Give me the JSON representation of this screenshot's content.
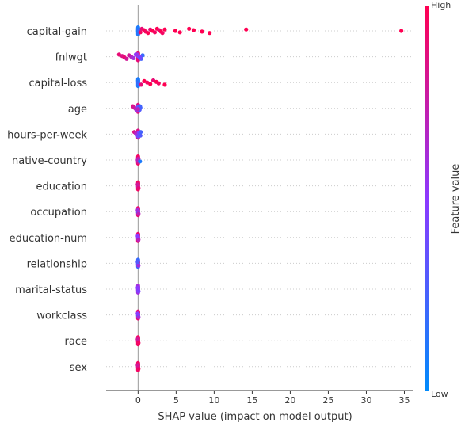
{
  "chart_data": {
    "type": "scatter",
    "variant": "shap-beeswarm",
    "xlabel": "SHAP value (impact on model output)",
    "ylabel": "",
    "xlim": [
      -4.2,
      36.2
    ],
    "xticks": [
      0,
      5,
      10,
      15,
      20,
      25,
      30,
      35
    ],
    "zero_line": true,
    "grid": false,
    "colorbar": {
      "label": "Feature value",
      "high_label": "High",
      "low_label": "Low",
      "high_color": "#ff0052",
      "mid_color": "#8c39ff",
      "low_color": "#008bfb"
    },
    "features": [
      {
        "name": "capital-gain",
        "points": [
          [
            0,
            0.1
          ],
          [
            0,
            0.2
          ],
          [
            0,
            0.05
          ],
          [
            0.05,
            0.15
          ],
          [
            0.1,
            0.1
          ],
          [
            0.15,
            0.2
          ],
          [
            0.3,
            0.95
          ],
          [
            0.5,
            0.9
          ],
          [
            0.8,
            1
          ],
          [
            1.0,
            0.95
          ],
          [
            1.3,
            1
          ],
          [
            1.6,
            0.9
          ],
          [
            1.9,
            1
          ],
          [
            2.2,
            0.95
          ],
          [
            2.5,
            1
          ],
          [
            2.8,
            0.9
          ],
          [
            3.0,
            1
          ],
          [
            3.2,
            0.95
          ],
          [
            3.5,
            1
          ],
          [
            4.9,
            1
          ],
          [
            5.5,
            1
          ],
          [
            6.7,
            1
          ],
          [
            7.3,
            1
          ],
          [
            8.4,
            1
          ],
          [
            9.4,
            1
          ],
          [
            14.2,
            1
          ],
          [
            34.6,
            1
          ]
        ]
      },
      {
        "name": "fnlwgt",
        "points": [
          [
            -2.5,
            0.9
          ],
          [
            -2.1,
            0.85
          ],
          [
            -1.8,
            0.9
          ],
          [
            -1.5,
            0.8
          ],
          [
            -1.2,
            0.8
          ],
          [
            -0.9,
            0.7
          ],
          [
            -0.6,
            0.6
          ],
          [
            -0.3,
            0.5
          ],
          [
            0,
            0.45
          ],
          [
            0.2,
            0.35
          ],
          [
            0.4,
            0.25
          ],
          [
            0.6,
            0.2
          ],
          [
            0.2,
            0.5
          ],
          [
            0.3,
            0.4
          ],
          [
            -0.1,
            0.55
          ]
        ]
      },
      {
        "name": "capital-loss",
        "points": [
          [
            0,
            0.1
          ],
          [
            0,
            0.15
          ],
          [
            0.05,
            0.2
          ],
          [
            0.4,
            0.9
          ],
          [
            0.8,
            1
          ],
          [
            1.2,
            0.95
          ],
          [
            1.6,
            1
          ],
          [
            2.0,
            0.9
          ],
          [
            2.4,
            1
          ],
          [
            2.7,
            0.95
          ],
          [
            3.5,
            1
          ]
        ]
      },
      {
        "name": "age",
        "points": [
          [
            -0.7,
            0.85
          ],
          [
            -0.5,
            0.8
          ],
          [
            -0.3,
            0.7
          ],
          [
            -0.1,
            0.6
          ],
          [
            0,
            0.4
          ],
          [
            0.1,
            0.5
          ],
          [
            0.2,
            0.3
          ],
          [
            0.25,
            0.2
          ],
          [
            0.3,
            0.25
          ],
          [
            0,
            0.7
          ]
        ]
      },
      {
        "name": "hours-per-week",
        "points": [
          [
            -0.5,
            0.85
          ],
          [
            -0.3,
            0.7
          ],
          [
            -0.1,
            0.6
          ],
          [
            0,
            0.4
          ],
          [
            0.1,
            0.5
          ],
          [
            0.2,
            0.35
          ],
          [
            0.3,
            0.3
          ],
          [
            0.35,
            0.25
          ]
        ]
      },
      {
        "name": "native-country",
        "points": [
          [
            0,
            0.95
          ],
          [
            0,
            0.9
          ],
          [
            0,
            0.85
          ],
          [
            0,
            0.8
          ],
          [
            0.05,
            0.75
          ],
          [
            -0.05,
            0.7
          ],
          [
            0.25,
            0.1
          ]
        ]
      },
      {
        "name": "education",
        "points": [
          [
            0,
            0.95
          ],
          [
            0,
            0.85
          ],
          [
            0,
            0.7
          ],
          [
            0.05,
            0.9
          ],
          [
            -0.05,
            0.8
          ]
        ]
      },
      {
        "name": "occupation",
        "points": [
          [
            0,
            0.9
          ],
          [
            0,
            0.5
          ],
          [
            0,
            0.3
          ],
          [
            0.05,
            0.7
          ],
          [
            -0.05,
            0.6
          ]
        ]
      },
      {
        "name": "education-num",
        "points": [
          [
            0,
            0.9
          ],
          [
            0,
            0.6
          ],
          [
            0,
            0.4
          ],
          [
            0.05,
            0.7
          ],
          [
            -0.05,
            0.5
          ]
        ]
      },
      {
        "name": "relationship",
        "points": [
          [
            0,
            0.2
          ],
          [
            0,
            0.9
          ],
          [
            0,
            0.4
          ],
          [
            0.05,
            0.6
          ],
          [
            -0.05,
            0.3
          ]
        ]
      },
      {
        "name": "marital-status",
        "points": [
          [
            0,
            0.6
          ],
          [
            0,
            0.5
          ],
          [
            0,
            0.55
          ],
          [
            0.05,
            0.45
          ],
          [
            -0.05,
            0.5
          ]
        ]
      },
      {
        "name": "workclass",
        "points": [
          [
            0,
            0.9
          ],
          [
            0,
            0.4
          ],
          [
            0,
            0.2
          ],
          [
            0.05,
            0.6
          ],
          [
            -0.05,
            0.5
          ]
        ]
      },
      {
        "name": "race",
        "points": [
          [
            0,
            0.95
          ],
          [
            0,
            0.85
          ],
          [
            0,
            0.9
          ],
          [
            0.05,
            0.95
          ],
          [
            -0.05,
            0.8
          ]
        ]
      },
      {
        "name": "sex",
        "points": [
          [
            0,
            0.95
          ],
          [
            0,
            0.9
          ],
          [
            0,
            0.85
          ],
          [
            0.05,
            0.95
          ],
          [
            -0.05,
            0.8
          ]
        ]
      }
    ]
  }
}
